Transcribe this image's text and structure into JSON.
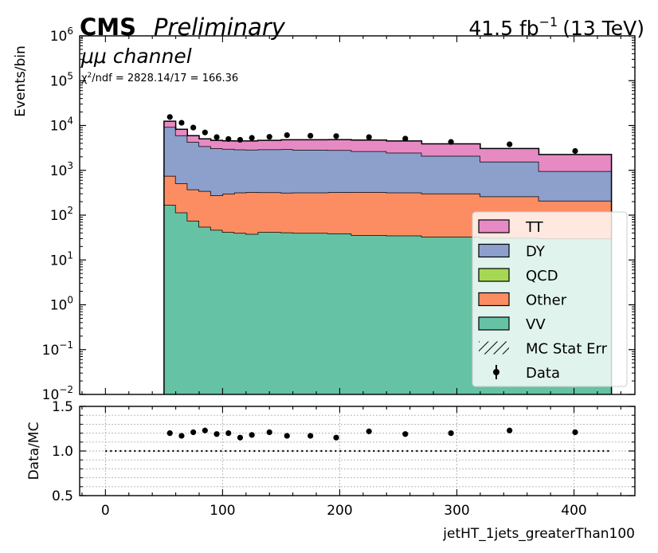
{
  "header": {
    "cms": "CMS",
    "preliminary": "Preliminary",
    "lumi_value": "41.5 fb",
    "lumi_exp": "−1",
    "energy": "(13 TeV)"
  },
  "annotations": {
    "channel": "μμ channel",
    "chi2_prefix": "χ",
    "chi2_exp": "2",
    "chi2_rest": "/ndf = 2828.14/17 = 166.36"
  },
  "colors": {
    "TT": "#e78ac3",
    "DY": "#8da0cb",
    "QCD": "#a6d854",
    "Other": "#fc8d62",
    "VV": "#66c2a5",
    "data": "#000000"
  },
  "chart_data": [
    {
      "type": "area",
      "ylabel": "Events/bin",
      "xlim": [
        -22,
        452
      ],
      "ylim": [
        0.01,
        1000000
      ],
      "yscale": "log",
      "y_ticks": [
        {
          "value": 0.01,
          "base": "10",
          "exp": "−2"
        },
        {
          "value": 0.1,
          "base": "10",
          "exp": "−1"
        },
        {
          "value": 1,
          "base": "10",
          "exp": "0"
        },
        {
          "value": 10,
          "base": "10",
          "exp": "1"
        },
        {
          "value": 100,
          "base": "10",
          "exp": "2"
        },
        {
          "value": 1000,
          "base": "10",
          "exp": "3"
        },
        {
          "value": 10000,
          "base": "10",
          "exp": "4"
        },
        {
          "value": 100000,
          "base": "10",
          "exp": "5"
        },
        {
          "value": 1000000,
          "base": "10",
          "exp": "6"
        }
      ],
      "bin_edges": [
        50,
        60,
        70,
        80,
        90,
        100,
        110,
        120,
        130,
        150,
        160,
        190,
        210,
        240,
        270,
        320,
        370,
        432
      ],
      "series": [
        {
          "name": "VV",
          "values": [
            170,
            115,
            75,
            55,
            47,
            42,
            40,
            38,
            42,
            41,
            40,
            39,
            36,
            35,
            33,
            31,
            30
          ]
        },
        {
          "name": "Other",
          "values": [
            580,
            400,
            300,
            290,
            230,
            260,
            280,
            290,
            280,
            275,
            280,
            285,
            290,
            285,
            270,
            230,
            180
          ]
        },
        {
          "name": "QCD",
          "values": [
            0,
            0,
            0,
            0,
            0,
            0,
            0,
            0,
            0,
            0,
            0,
            0,
            0,
            0,
            0,
            0,
            0
          ]
        },
        {
          "name": "DY",
          "values": [
            8500,
            5500,
            3900,
            3100,
            2800,
            2700,
            2600,
            2550,
            2600,
            2650,
            2550,
            2500,
            2350,
            2150,
            1800,
            1300,
            750
          ]
        },
        {
          "name": "TT",
          "values": [
            3200,
            2200,
            1650,
            1600,
            1580,
            1550,
            1600,
            1650,
            1750,
            1850,
            1950,
            2000,
            2050,
            2050,
            1800,
            1500,
            1300
          ]
        }
      ],
      "data_points": {
        "name": "Data",
        "x": [
          55,
          65,
          75,
          85,
          95,
          105,
          115,
          125,
          140,
          155,
          175,
          197,
          225,
          256,
          295,
          345,
          401
        ],
        "y": [
          15500,
          11500,
          9000,
          7000,
          5500,
          5000,
          4800,
          5300,
          5600,
          6100,
          5900,
          5800,
          5500,
          5100,
          4300,
          3800,
          2700
        ]
      },
      "legend": {
        "placement": "lower-right",
        "entries": [
          {
            "key": "TT",
            "label": "TT",
            "style": "fill"
          },
          {
            "key": "DY",
            "label": "DY",
            "style": "fill"
          },
          {
            "key": "QCD",
            "label": "QCD",
            "style": "fill"
          },
          {
            "key": "Other",
            "label": "Other",
            "style": "fill"
          },
          {
            "key": "VV",
            "label": "VV",
            "style": "fill"
          },
          {
            "key": "stat",
            "label": "MC Stat Err",
            "style": "hatch"
          },
          {
            "key": "data",
            "label": "Data",
            "style": "point"
          }
        ]
      }
    },
    {
      "type": "scatter",
      "xlabel": "jetHT_1jets_greaterThan100",
      "ylabel": "Data/MC",
      "xlim": [
        -22,
        452
      ],
      "ylim": [
        0.5,
        1.5
      ],
      "x_ticks": [
        "0",
        "100",
        "200",
        "300",
        "400"
      ],
      "x_tick_values": [
        0,
        100,
        200,
        300,
        400
      ],
      "y_ticks": [
        "0.5",
        "1.0",
        "1.5"
      ],
      "y_tick_values": [
        0.5,
        1.0,
        1.5
      ],
      "reference_line": 1.0,
      "grid": true,
      "x": [
        55,
        65,
        75,
        85,
        95,
        105,
        115,
        125,
        140,
        155,
        175,
        197,
        225,
        256,
        295,
        345,
        401
      ],
      "y": [
        1.2,
        1.17,
        1.21,
        1.23,
        1.19,
        1.2,
        1.15,
        1.18,
        1.21,
        1.17,
        1.17,
        1.15,
        1.22,
        1.19,
        1.2,
        1.23,
        1.21
      ]
    }
  ]
}
